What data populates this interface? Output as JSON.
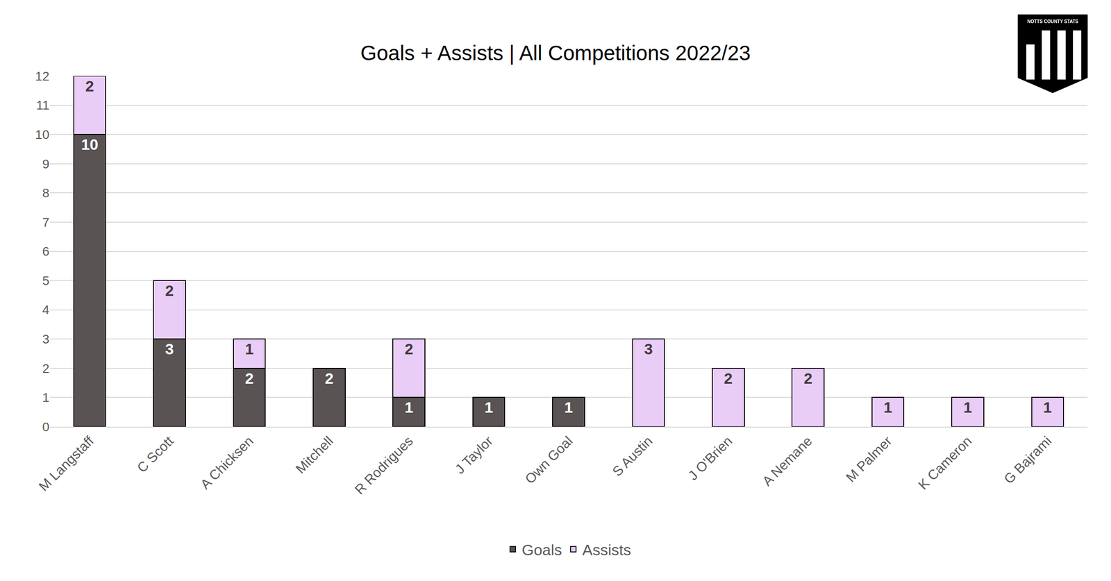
{
  "chart_data": {
    "type": "bar",
    "title": "Goals + Assists | All Competitions 2022/23",
    "annotations": [
      "NOTTS COUNTY STATS"
    ],
    "categories": [
      "M Langstaff",
      "C Scott",
      "A Chicksen",
      "Mitchell",
      "R Rodrigues",
      "J Taylor",
      "Own Goal",
      "S Austin",
      "J O'Brien",
      "A Nemane",
      "M Palmer",
      "K Cameron",
      "G Bajrami"
    ],
    "series": [
      {
        "name": "Goals",
        "color": "#595354",
        "values": [
          10,
          3,
          2,
          2,
          1,
          1,
          1,
          0,
          0,
          0,
          0,
          0,
          0
        ]
      },
      {
        "name": "Assists",
        "color": "#e9cdf7",
        "values": [
          2,
          2,
          1,
          0,
          2,
          0,
          0,
          3,
          2,
          2,
          1,
          1,
          1
        ]
      }
    ],
    "ylim": [
      0,
      12
    ],
    "yticks": [
      0,
      1,
      2,
      3,
      4,
      5,
      6,
      7,
      8,
      9,
      10,
      11,
      12
    ],
    "grid": true,
    "stacked": true,
    "data_labels": true,
    "legend": "bottom"
  }
}
